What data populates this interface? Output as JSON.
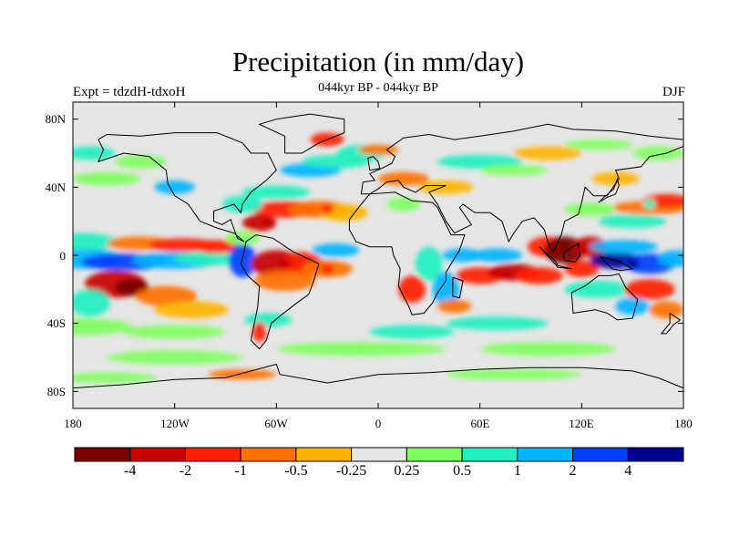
{
  "title": "Precipitation (in mm/day)",
  "subtitle": "044kyr BP - 044kyr BP",
  "left_label": "Expt = tdzdH-tdxoH",
  "right_label": "DJF",
  "map": {
    "projection": "cylindrical equidistant",
    "lon_range": [
      -180,
      180
    ],
    "lat_range": [
      -90,
      90
    ],
    "lat_ticks": [
      "80N",
      "40N",
      "0",
      "40S",
      "80S"
    ],
    "lon_ticks": [
      "180",
      "120W",
      "60W",
      "0",
      "60E",
      "120E",
      "180"
    ],
    "land_fill": "#e6e6e6",
    "coastline_color": "#000000",
    "anomaly_regions": [
      {
        "name": "central-pacific-dry",
        "lon": -140,
        "lat": -18,
        "level": -4
      },
      {
        "name": "caribbean-dry",
        "lon": -65,
        "lat": 20,
        "level": -2
      },
      {
        "name": "atlantic-dry-band",
        "lon": -30,
        "lat": 27,
        "level": -1
      },
      {
        "name": "amazon-dry",
        "lon": -55,
        "lat": -5,
        "level": -2
      },
      {
        "name": "south-atlantic-dry",
        "lon": -30,
        "lat": -8,
        "level": -1
      },
      {
        "name": "indian-ocean-dry",
        "lon": 75,
        "lat": -12,
        "level": -2
      },
      {
        "name": "maritime-continent-dry",
        "lon": 110,
        "lat": 3,
        "level": -4
      },
      {
        "name": "west-pacific-wet",
        "lon": 150,
        "lat": -5,
        "level": 4
      },
      {
        "name": "east-pacific-wet",
        "lon": -160,
        "lat": -4,
        "level": 2
      },
      {
        "name": "north-pacific-wet",
        "lon": 160,
        "lat": 30,
        "level": 0.5
      },
      {
        "name": "southern-ocean-wet",
        "lon": -10,
        "lat": -55,
        "level": 0.25
      }
    ]
  },
  "colorbar": {
    "colors": [
      "#7a0000",
      "#c80000",
      "#ff2000",
      "#ff7000",
      "#ffb400",
      "#e6e6e6",
      "#80ff60",
      "#20f0c0",
      "#00b4ff",
      "#0040ff",
      "#000090"
    ],
    "labels": [
      "-4",
      "-2",
      "-1",
      "-0.5",
      "-0.25",
      "0.25",
      "0.5",
      "1",
      "2",
      "4"
    ]
  }
}
